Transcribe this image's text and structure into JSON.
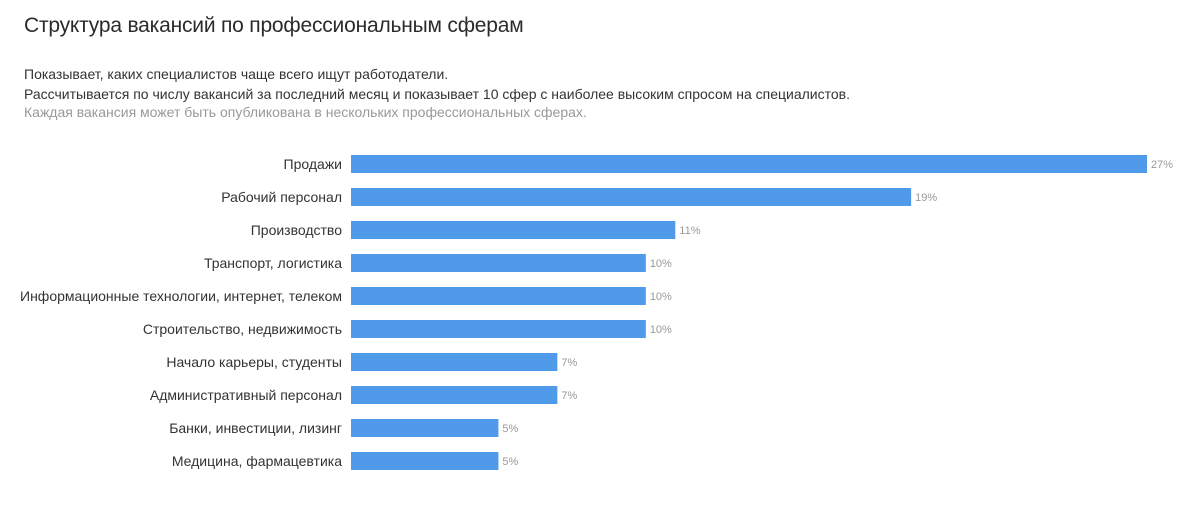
{
  "header": {
    "title": "Структура вакансий по профессиональным сферам",
    "description_line1": "Показывает, каких специалистов чаще всего ищут работодатели.",
    "description_line2": "Рассчитывается по числу вакансий за последний месяц и показывает 10 сфер с наиболее высоким спросом на специалистов.",
    "note": "Каждая вакансия может быть опубликована в нескольких профессиональных сферах."
  },
  "chart_data": {
    "type": "bar",
    "orientation": "horizontal",
    "categories": [
      "Продажи",
      "Рабочий персонал",
      "Производство",
      "Транспорт, логистика",
      "Информационные технологии, интернет, телеком",
      "Строительство, недвижимость",
      "Начало карьеры, студенты",
      "Административный персонал",
      "Банки, инвестиции, лизинг",
      "Медицина, фармацевтика"
    ],
    "values": [
      27,
      19,
      11,
      10,
      10,
      10,
      7,
      7,
      5,
      5
    ],
    "value_labels": [
      "27%",
      "19%",
      "11%",
      "10%",
      "10%",
      "10%",
      "7%",
      "7%",
      "5%",
      "5%"
    ],
    "unit": "%",
    "xlim": [
      0,
      27
    ],
    "grid": false,
    "legend": false,
    "bar_color": "#4f9be9"
  }
}
